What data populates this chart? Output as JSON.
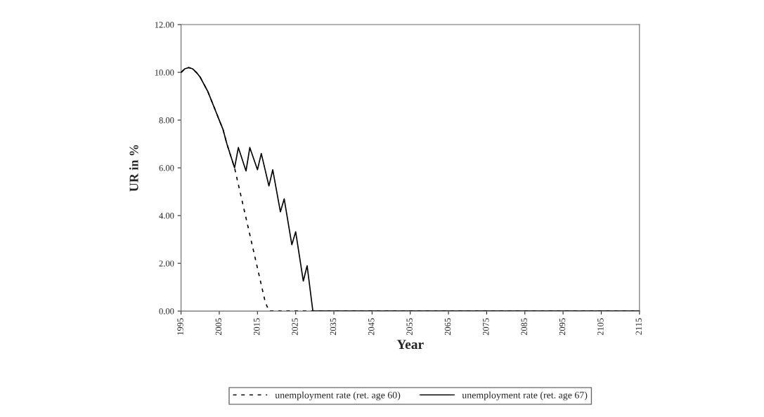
{
  "chart_data": {
    "type": "line",
    "xlabel": "Year",
    "ylabel": "UR in %",
    "xlim": [
      1995,
      2115
    ],
    "xticks": [
      1995,
      2005,
      2015,
      2025,
      2035,
      2045,
      2055,
      2065,
      2075,
      2085,
      2095,
      2105,
      2115
    ],
    "ylim": [
      0,
      12
    ],
    "yticks": [
      {
        "value": 0,
        "label": "0.00"
      },
      {
        "value": 2,
        "label": "2.00"
      },
      {
        "value": 4,
        "label": "4.00"
      },
      {
        "value": 6,
        "label": "6.00"
      },
      {
        "value": 8,
        "label": "8.00"
      },
      {
        "value": 10,
        "label": "10.00"
      },
      {
        "value": 12,
        "label": "12.00"
      }
    ],
    "grid": false,
    "legend": "bottom",
    "series": [
      {
        "name": "unemployment rate (ret. age 60)",
        "color": "#000000",
        "line_style": "dashed",
        "x": [
          1995,
          1996,
          1997,
          1998,
          1999,
          2000,
          2001,
          2002,
          2003,
          2004,
          2005,
          2006,
          2007,
          2008,
          2009,
          2010,
          2011,
          2012,
          2013,
          2014,
          2015,
          2016,
          2017,
          2018,
          2115
        ],
        "values": [
          10.0,
          10.15,
          10.2,
          10.15,
          10.0,
          9.8,
          9.5,
          9.2,
          8.8,
          8.4,
          8.0,
          7.6,
          7.0,
          6.5,
          6.0,
          5.3,
          4.6,
          3.9,
          3.2,
          2.5,
          1.8,
          1.1,
          0.4,
          0,
          0
        ]
      },
      {
        "name": "unemployment rate (ret. age 67)",
        "color": "#000000",
        "line_style": "solid",
        "x": [
          1995,
          1996,
          1997,
          1998,
          1999,
          2000,
          2001,
          2002,
          2003,
          2004,
          2005,
          2006,
          2007,
          2008,
          2009,
          2010,
          2012,
          2013,
          2015,
          2016,
          2018,
          2019,
          2021,
          2022,
          2024,
          2025,
          2027,
          2028,
          2029.5,
          2115
        ],
        "values": [
          10.0,
          10.15,
          10.2,
          10.15,
          10.0,
          9.8,
          9.5,
          9.2,
          8.8,
          8.4,
          8.0,
          7.6,
          7.0,
          6.5,
          6.0,
          6.85,
          5.87,
          6.85,
          5.92,
          6.6,
          5.24,
          5.92,
          4.16,
          4.7,
          2.78,
          3.32,
          1.26,
          1.9,
          0,
          0
        ]
      }
    ]
  }
}
